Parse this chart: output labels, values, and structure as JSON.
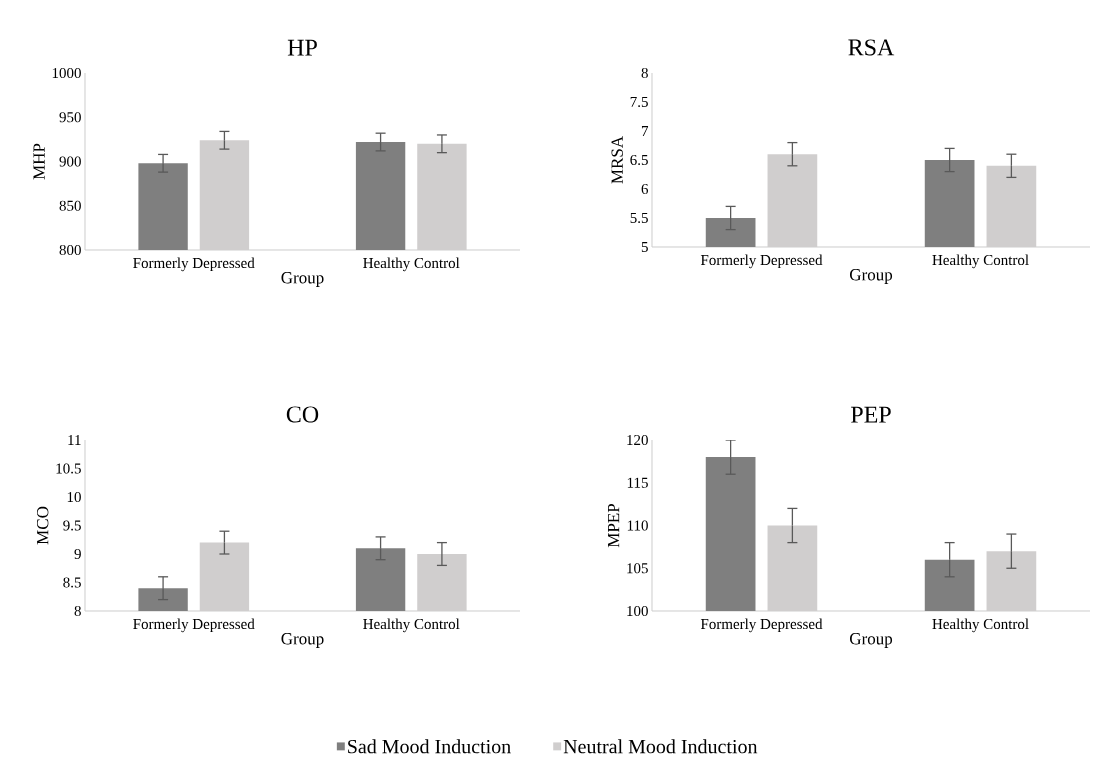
{
  "chart_data": [
    {
      "type": "bar",
      "title": "HP",
      "xlabel": "Group",
      "ylabel": "MHP",
      "categories": [
        "Formerly Depressed",
        "Healthy Control"
      ],
      "ylim": [
        800,
        1000
      ],
      "yticks": [
        800,
        850,
        900,
        950,
        1000
      ],
      "grid": false,
      "series": [
        {
          "color": "#7f7f7f",
          "values": [
            898,
            922
          ],
          "errors": [
            10,
            10
          ]
        },
        {
          "color": "#d0cece",
          "values": [
            924,
            920
          ],
          "errors": [
            10,
            10
          ]
        }
      ]
    },
    {
      "type": "bar",
      "title": "RSA",
      "xlabel": "Group",
      "ylabel": "MRSA",
      "categories": [
        "Formerly Depressed",
        "Healthy Control"
      ],
      "ylim": [
        5,
        8
      ],
      "yticks": [
        5,
        5.5,
        6,
        6.5,
        7,
        7.5,
        8
      ],
      "grid": false,
      "series": [
        {
          "color": "#7f7f7f",
          "values": [
            5.5,
            6.5
          ],
          "errors": [
            0.2,
            0.2
          ]
        },
        {
          "color": "#d0cece",
          "values": [
            6.6,
            6.4
          ],
          "errors": [
            0.2,
            0.2
          ]
        }
      ]
    },
    {
      "type": "bar",
      "title": "CO",
      "xlabel": "Group",
      "ylabel": "MCO",
      "categories": [
        "Formerly Depressed",
        "Healthy Control"
      ],
      "ylim": [
        8,
        11
      ],
      "yticks": [
        8,
        8.5,
        9,
        9.5,
        10,
        10.5,
        11
      ],
      "grid": false,
      "series": [
        {
          "color": "#7f7f7f",
          "values": [
            8.4,
            9.1
          ],
          "errors": [
            0.2,
            0.2
          ]
        },
        {
          "color": "#d0cece",
          "values": [
            9.2,
            9.0
          ],
          "errors": [
            0.2,
            0.2
          ]
        }
      ]
    },
    {
      "type": "bar",
      "title": "PEP",
      "xlabel": "Group",
      "ylabel": "MPEP",
      "categories": [
        "Formerly Depressed",
        "Healthy Control"
      ],
      "ylim": [
        100,
        120
      ],
      "yticks": [
        100,
        105,
        110,
        115,
        120
      ],
      "grid": false,
      "legend": "bottom",
      "series": [
        {
          "name": "Sad Mood Induction",
          "color": "#7f7f7f",
          "values": [
            118,
            106
          ],
          "errors": [
            2,
            2
          ]
        },
        {
          "name": "Neutral Mood Induction",
          "color": "#d0cece",
          "values": [
            110,
            107
          ],
          "errors": [
            2,
            2
          ]
        }
      ]
    }
  ]
}
